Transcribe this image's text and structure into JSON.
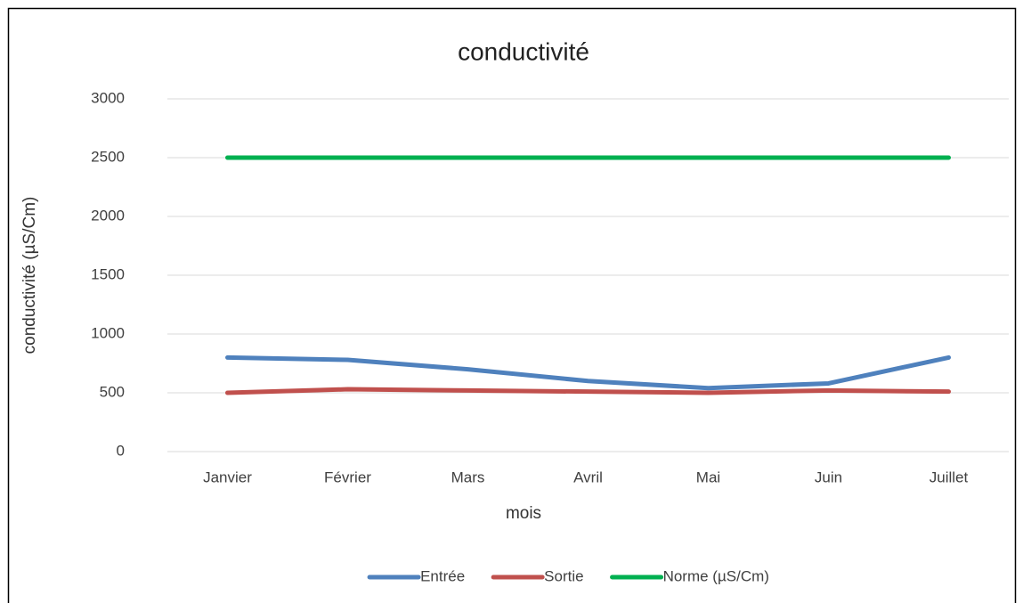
{
  "chart_data": {
    "type": "line",
    "title": "conductivité",
    "x_label": "mois",
    "y_label": "conductivité (µS/Cm)",
    "categories": [
      "Janvier",
      "Février",
      "Mars",
      "Avril",
      "Mai",
      "Juin",
      "Juillet"
    ],
    "series": [
      {
        "name": "Entrée",
        "color": "#4f81bd",
        "values": [
          800,
          780,
          700,
          600,
          540,
          580,
          800
        ]
      },
      {
        "name": "Sortie",
        "color": "#c0504d",
        "values": [
          500,
          530,
          520,
          510,
          500,
          520,
          510
        ]
      },
      {
        "name": "Norme (µS/Cm)",
        "color": "#00b050",
        "values": [
          2500,
          2500,
          2500,
          2500,
          2500,
          2500,
          2500
        ]
      }
    ],
    "ylim": [
      0,
      3000
    ],
    "yticks": [
      0,
      500,
      1000,
      1500,
      2000,
      2500,
      3000
    ],
    "grid": true,
    "legend": "bottom"
  }
}
